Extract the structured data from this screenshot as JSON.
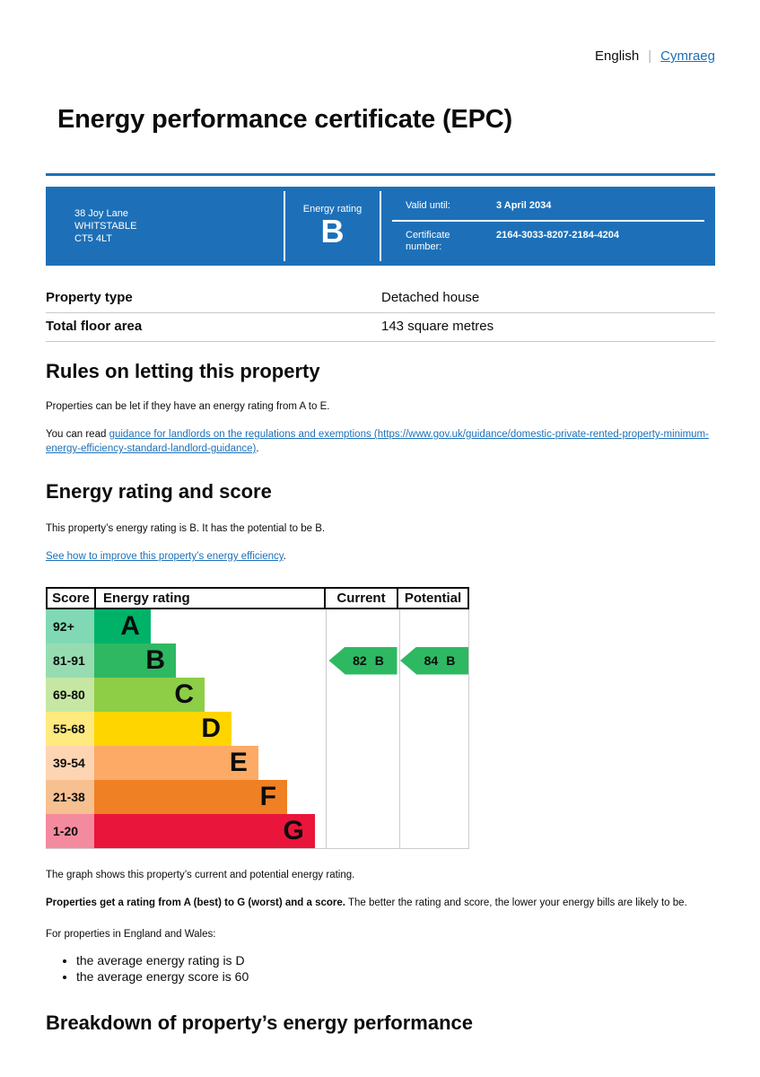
{
  "lang": {
    "current": "English",
    "separator": "|",
    "other": "Cymraeg"
  },
  "page": {
    "title": "Energy performance certificate (EPC)"
  },
  "colors": {
    "brand_blue": "#1d70b8",
    "link_blue": "#1d70b8",
    "table_border": "#c9c9c9"
  },
  "banner": {
    "address_lines": [
      "38 Joy Lane",
      "WHITSTABLE",
      "CT5 4LT"
    ],
    "energy_rating_label": "Energy rating",
    "energy_rating_value": "B",
    "valid_until_label": "Valid until:",
    "valid_until_value": "3 April 2034",
    "certificate_number_label": "Certificate number:",
    "certificate_number_value": "2164-3033-8207-2184-4204"
  },
  "summary": {
    "rows": [
      {
        "label": "Property type",
        "value": "Detached house"
      },
      {
        "label": "Total floor area",
        "value": "143 square metres"
      }
    ]
  },
  "rules": {
    "heading": "Rules on letting this property",
    "p1": "Properties can be let if they have an energy rating from A to E.",
    "p2_prefix": "You can read ",
    "p2_link": "guidance for landlords on the regulations and exemptions (https://www.gov.uk/guidance/domestic-private-rented-property-minimum-energy-efficiency-standard-landlord-guidance)",
    "p2_suffix": "."
  },
  "rating": {
    "heading": "Energy rating and score",
    "intro": "This property’s energy rating is B. It has the potential to be B.",
    "improve_link": "See how to improve this property’s energy efficiency",
    "improve_suffix": "."
  },
  "chart_data": {
    "type": "bar",
    "title": "Energy rating and score graph",
    "columns": [
      "Score",
      "Energy rating",
      "Current",
      "Potential"
    ],
    "bands": [
      {
        "score": "92+",
        "letter": "A",
        "width_pct": 24.4,
        "color": "#00b268",
        "score_bg": "#80d9b4"
      },
      {
        "score": "81-91",
        "letter": "B",
        "width_pct": 35.3,
        "color": "#2eb862",
        "score_bg": "#97dcb1"
      },
      {
        "score": "69-80",
        "letter": "C",
        "width_pct": 47.7,
        "color": "#8dce46",
        "score_bg": "#c6e7a3"
      },
      {
        "score": "55-68",
        "letter": "D",
        "width_pct": 59.3,
        "color": "#ffd500",
        "score_bg": "#ffea80"
      },
      {
        "score": "39-54",
        "letter": "E",
        "width_pct": 70.9,
        "color": "#fcaa65",
        "score_bg": "#fed5b2"
      },
      {
        "score": "21-38",
        "letter": "F",
        "width_pct": 83.3,
        "color": "#ef8023",
        "score_bg": "#f7c091"
      },
      {
        "score": "1-20",
        "letter": "G",
        "width_pct": 95.3,
        "color": "#e9153b",
        "score_bg": "#f48a9d"
      }
    ],
    "current": {
      "score": 82,
      "band": "B",
      "color": "#2eb862"
    },
    "potential": {
      "score": 84,
      "band": "B",
      "color": "#2eb862"
    }
  },
  "below": {
    "graph_note": "The graph shows this property’s current and potential energy rating.",
    "ratings_bold": "Properties get a rating from A (best) to G (worst) and a score.",
    "ratings_rest": " The better the rating and score, the lower your energy bills are likely to be.",
    "scope_line": "For properties in England and Wales:",
    "bullets": [
      "the average energy rating is D",
      "the average energy score is 60"
    ]
  },
  "breakdown": {
    "heading": "Breakdown of property’s energy performance"
  }
}
